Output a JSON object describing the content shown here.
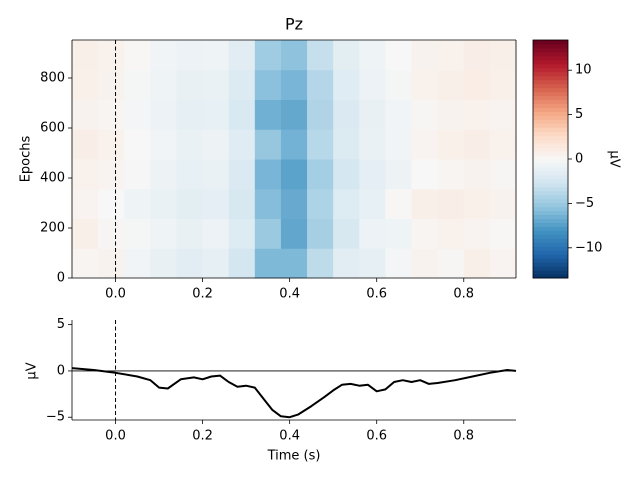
{
  "chart_data": [
    {
      "type": "heatmap",
      "title": "Pz",
      "ylabel": "Epochs",
      "x_edges": [
        -0.1,
        -0.04,
        0.02,
        0.08,
        0.14,
        0.2,
        0.26,
        0.32,
        0.38,
        0.44,
        0.5,
        0.56,
        0.62,
        0.68,
        0.74,
        0.8,
        0.86,
        0.92
      ],
      "y_edges": [
        0,
        119,
        238,
        357,
        476,
        595,
        714,
        833,
        952
      ],
      "z": [
        [
          0.3,
          0.5,
          -0.5,
          -1.0,
          -1.5,
          -1.2,
          -2.5,
          -6.0,
          -6.0,
          -3.5,
          -1.5,
          -1.2,
          -0.3,
          0.5,
          0.2,
          0.8,
          0.4
        ],
        [
          0.8,
          0.2,
          -0.2,
          -0.6,
          -1.0,
          -0.8,
          -1.8,
          -5.0,
          -7.0,
          -4.5,
          -2.2,
          -0.8,
          -0.6,
          0.3,
          0.6,
          0.4,
          0.1
        ],
        [
          0.4,
          0.0,
          -0.6,
          -0.9,
          -1.4,
          -1.3,
          -2.2,
          -5.8,
          -6.8,
          -4.2,
          -1.8,
          -1.1,
          0.1,
          0.8,
          0.9,
          0.7,
          0.5
        ],
        [
          0.6,
          0.4,
          -0.1,
          -0.7,
          -1.1,
          -0.9,
          -2.0,
          -6.2,
          -7.2,
          -4.6,
          -2.4,
          -1.3,
          -0.7,
          0.0,
          0.3,
          0.5,
          0.2
        ],
        [
          0.9,
          0.6,
          0.0,
          -0.5,
          -0.9,
          -0.7,
          -1.6,
          -5.2,
          -6.4,
          -3.8,
          -1.9,
          -0.9,
          -0.4,
          0.4,
          0.7,
          0.9,
          0.6
        ],
        [
          0.5,
          0.3,
          -0.3,
          -0.8,
          -1.2,
          -1.1,
          -2.1,
          -6.5,
          -6.9,
          -4.1,
          -2.0,
          -1.0,
          -0.5,
          0.2,
          0.5,
          0.6,
          0.4
        ],
        [
          0.7,
          0.5,
          -0.2,
          -0.6,
          -1.0,
          -0.9,
          -1.9,
          -5.6,
          -6.2,
          -3.9,
          -1.7,
          -0.8,
          -0.2,
          0.6,
          0.8,
          1.0,
          0.7
        ],
        [
          0.8,
          0.6,
          0.1,
          -0.4,
          -0.8,
          -0.6,
          -1.5,
          -4.8,
          -5.5,
          -3.2,
          -1.4,
          -0.6,
          0.0,
          0.5,
          0.6,
          0.9,
          0.8
        ]
      ],
      "xlim": [
        -0.1,
        0.92
      ],
      "xticks": [
        {
          "value": 0,
          "label": "0.0"
        },
        0.2,
        0.4,
        0.6,
        0.8
      ],
      "ylim": [
        0,
        952
      ],
      "yticks": [
        0,
        200,
        400,
        600,
        800
      ],
      "vline": 0,
      "colormap": [
        "#053061",
        "#2166ac",
        "#4393c3",
        "#92c5de",
        "#d1e5f0",
        "#f7f7f7",
        "#fddbc7",
        "#f4a582",
        "#d6604d",
        "#b2182b",
        "#67001f"
      ],
      "colorbar": {
        "label": "µV",
        "lim": [
          -13.4,
          13.4
        ],
        "ticks": [
          {
            "value": -10,
            "label": "−10"
          },
          {
            "value": -5,
            "label": "−5"
          },
          0,
          5,
          10
        ]
      }
    },
    {
      "type": "line",
      "ylabel": "µV",
      "xlabel": "Time (s)",
      "x": [
        -0.1,
        -0.05,
        0,
        0.05,
        0.08,
        0.1,
        0.12,
        0.15,
        0.18,
        0.2,
        0.22,
        0.24,
        0.26,
        0.28,
        0.3,
        0.32,
        0.34,
        0.36,
        0.38,
        0.4,
        0.42,
        0.45,
        0.48,
        0.5,
        0.52,
        0.54,
        0.56,
        0.58,
        0.6,
        0.62,
        0.64,
        0.66,
        0.68,
        0.7,
        0.72,
        0.74,
        0.78,
        0.82,
        0.86,
        0.9,
        0.92
      ],
      "series": [
        {
          "color": "#000000",
          "values": [
            0.3,
            0.1,
            -0.2,
            -0.6,
            -1.0,
            -1.8,
            -1.9,
            -0.9,
            -0.7,
            -0.9,
            -0.6,
            -0.5,
            -1.2,
            -1.7,
            -1.6,
            -1.8,
            -3.0,
            -4.2,
            -4.9,
            -5.0,
            -4.7,
            -3.8,
            -2.8,
            -2.1,
            -1.5,
            -1.4,
            -1.6,
            -1.5,
            -2.2,
            -2.0,
            -1.2,
            -1.0,
            -1.2,
            -1.0,
            -1.4,
            -1.3,
            -1.0,
            -0.6,
            -0.2,
            0.1,
            0.0
          ]
        }
      ],
      "xlim": [
        -0.1,
        0.92
      ],
      "xticks": [
        {
          "value": 0,
          "label": "0.0"
        },
        0.2,
        0.4,
        0.6,
        0.8
      ],
      "ylim": [
        -5.3,
        5.5
      ],
      "yticks": [
        {
          "value": -5,
          "label": "−5"
        },
        0,
        5
      ],
      "vline": 0,
      "hline": 0
    }
  ]
}
